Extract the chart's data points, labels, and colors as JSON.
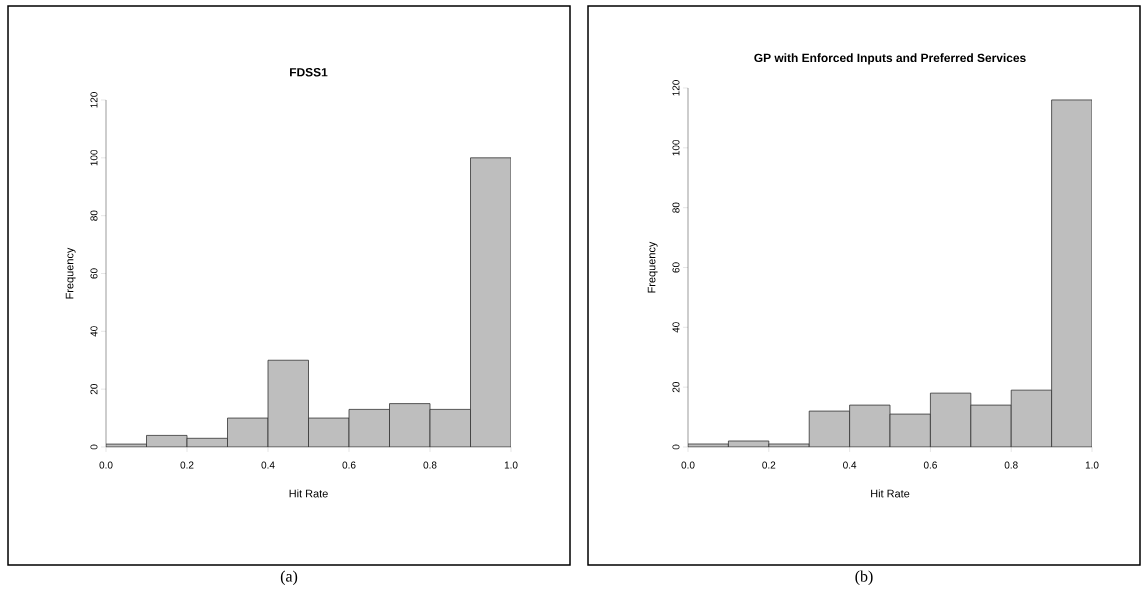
{
  "chart_data": [
    {
      "type": "histogram",
      "title": "FDSS1",
      "xlabel": "Hit Rate",
      "ylabel": "Frequency",
      "color": "#bebebe",
      "bins": [
        0.0,
        0.1,
        0.2,
        0.3,
        0.4,
        0.5,
        0.6,
        0.7,
        0.8,
        0.9,
        1.0
      ],
      "values": [
        1,
        4,
        3,
        10,
        30,
        10,
        13,
        15,
        13,
        100
      ],
      "xlim": [
        0,
        1
      ],
      "ylim": [
        0,
        120
      ],
      "xticks": [
        {
          "value": 0,
          "label": "0.0"
        },
        {
          "value": 0.2,
          "label": "0.2"
        },
        {
          "value": 0.4,
          "label": "0.4"
        },
        {
          "value": 0.6,
          "label": "0.6"
        },
        {
          "value": 0.8,
          "label": "0.8"
        },
        {
          "value": 1,
          "label": "1.0"
        }
      ],
      "yticks": [
        0,
        20,
        40,
        60,
        80,
        100,
        120
      ],
      "annotations": [
        "(a)"
      ]
    },
    {
      "type": "histogram",
      "title": "GP with Enforced Inputs and Preferred Services",
      "xlabel": "Hit Rate",
      "ylabel": "Frequency",
      "color": "#bebebe",
      "bins": [
        0.0,
        0.1,
        0.2,
        0.3,
        0.4,
        0.5,
        0.6,
        0.7,
        0.8,
        0.9,
        1.0
      ],
      "values": [
        1,
        2,
        1,
        12,
        14,
        11,
        18,
        14,
        19,
        116
      ],
      "xlim": [
        0,
        1
      ],
      "ylim": [
        0,
        120
      ],
      "xticks": [
        {
          "value": 0,
          "label": "0.0"
        },
        {
          "value": 0.2,
          "label": "0.2"
        },
        {
          "value": 0.4,
          "label": "0.4"
        },
        {
          "value": 0.6,
          "label": "0.6"
        },
        {
          "value": 0.8,
          "label": "0.8"
        },
        {
          "value": 1,
          "label": "1.0"
        }
      ],
      "yticks": [
        0,
        20,
        40,
        60,
        80,
        100,
        120
      ],
      "annotations": [
        "(b)"
      ]
    }
  ]
}
